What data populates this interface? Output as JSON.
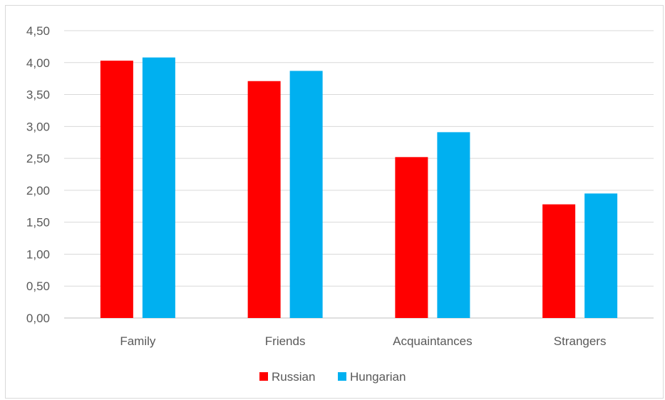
{
  "chart_data": {
    "type": "bar",
    "categories": [
      "Family",
      "Friends",
      "Acquaintances",
      "Strangers"
    ],
    "series": [
      {
        "name": "Russian",
        "color": "#ff0000",
        "values": [
          4.03,
          3.71,
          2.52,
          1.78
        ]
      },
      {
        "name": "Hungarian",
        "color": "#00b0f0",
        "values": [
          4.08,
          3.87,
          2.91,
          1.95
        ]
      }
    ],
    "title": "",
    "xlabel": "",
    "ylabel": "",
    "ylim": [
      0,
      4.5
    ],
    "yticks": [
      "0,00",
      "0,50",
      "1,00",
      "1,50",
      "2,00",
      "2,50",
      "3,00",
      "3,50",
      "4,00",
      "4,50"
    ],
    "grid": true,
    "legend_position": "bottom"
  }
}
